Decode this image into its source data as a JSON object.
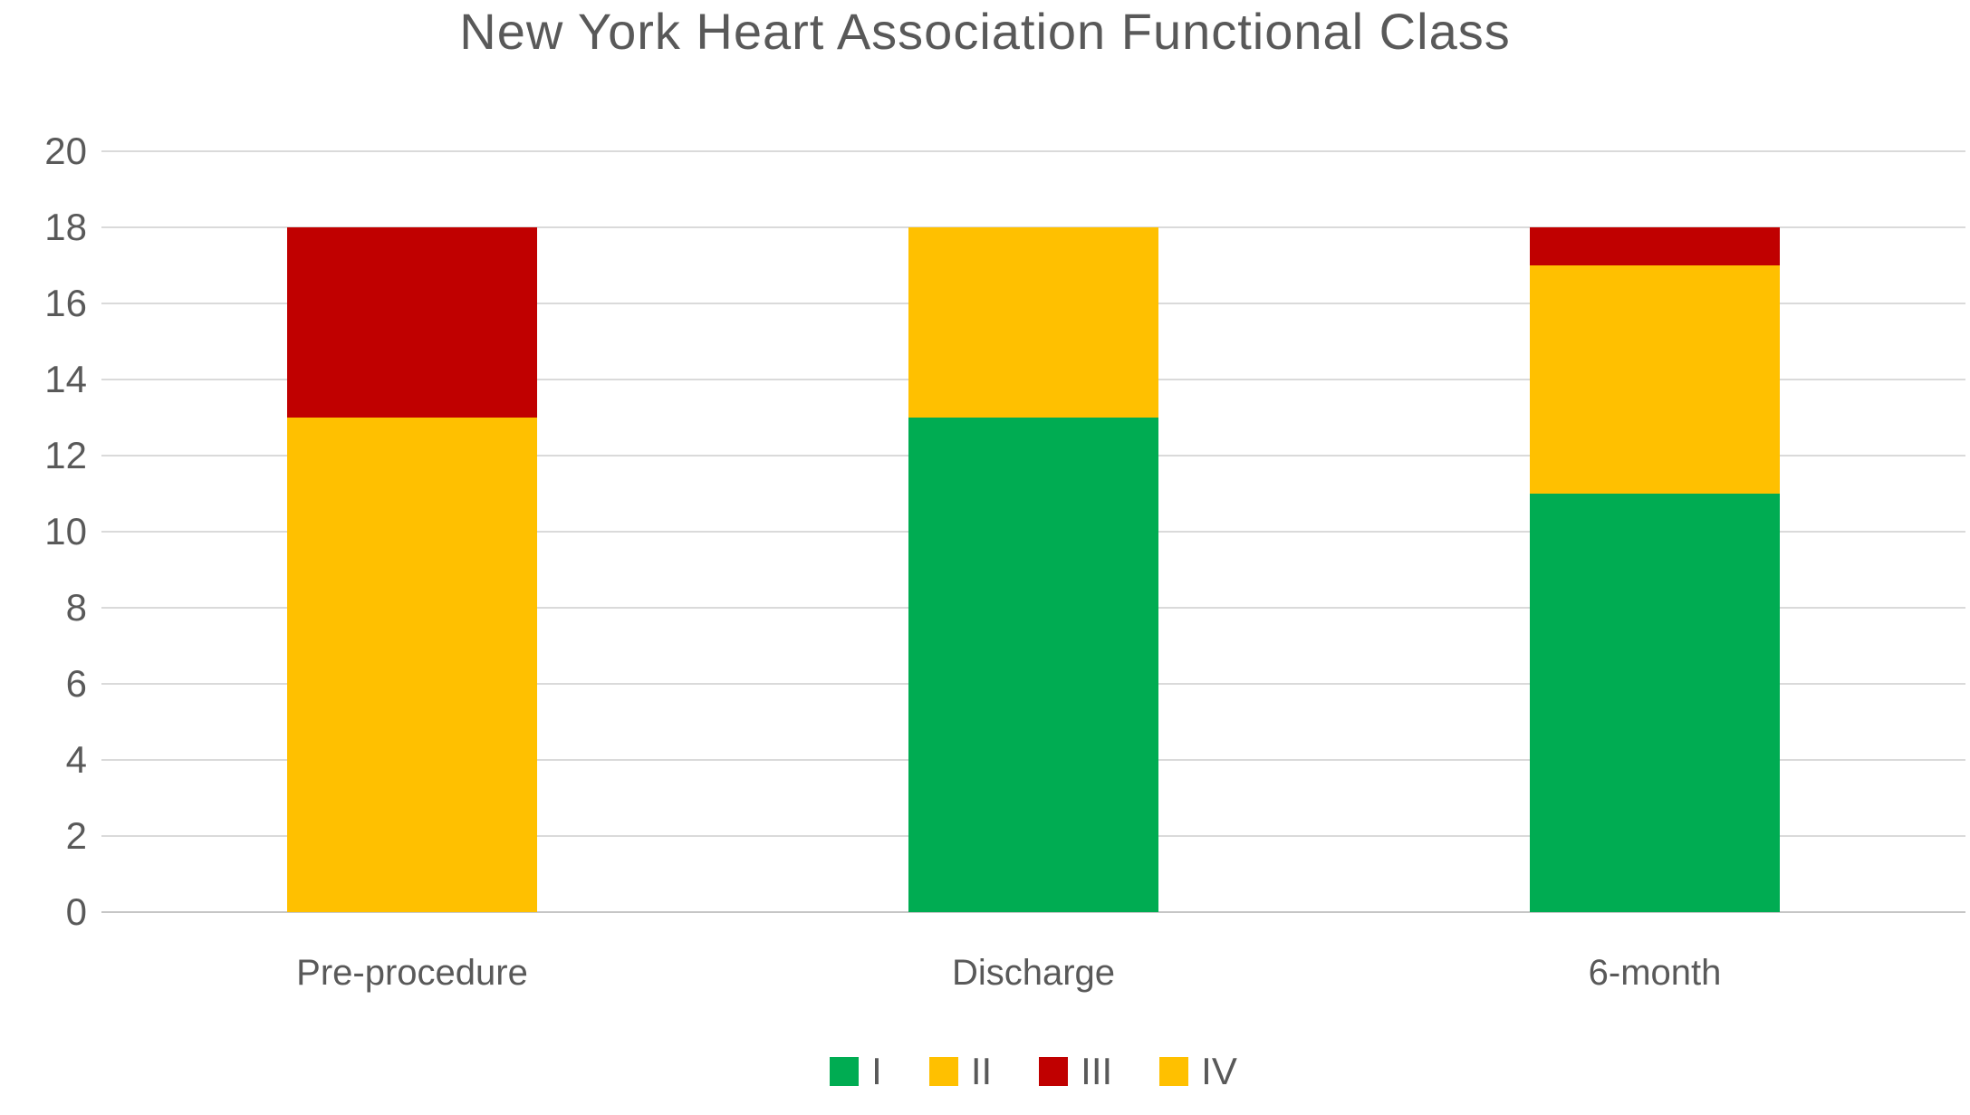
{
  "title": "New York Heart Association Functional Class",
  "chart_data": {
    "type": "bar",
    "stacked": true,
    "title": "New York Heart Association Functional Class",
    "categories": [
      "Pre-procedure",
      "Discharge",
      "6-month"
    ],
    "series": [
      {
        "name": "I",
        "color": "#00AC52",
        "values": [
          0,
          13,
          11
        ]
      },
      {
        "name": "II",
        "color": "#FFC000",
        "values": [
          13,
          5,
          6
        ]
      },
      {
        "name": "III",
        "color": "#C00000",
        "values": [
          5,
          0,
          1
        ]
      },
      {
        "name": "IV",
        "color": "#FFC000",
        "values": [
          0,
          0,
          0
        ]
      }
    ],
    "xlabel": "",
    "ylabel": "",
    "ylim": [
      0,
      20
    ],
    "yticks": [
      0,
      2,
      4,
      6,
      8,
      10,
      12,
      14,
      16,
      18,
      20
    ],
    "grid": true,
    "legend_position": "bottom",
    "colors": {
      "title_text": "#595959",
      "axis_text": "#595959",
      "gridline": "#DADADA",
      "background": "#FFFFFF"
    }
  }
}
